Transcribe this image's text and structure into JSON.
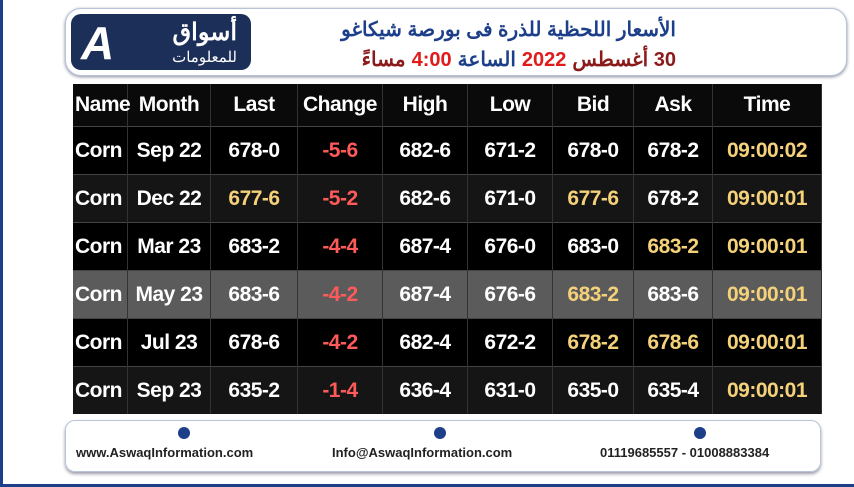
{
  "header": {
    "logo": {
      "name": "أسواق",
      "subtitle": "للمعلومات"
    },
    "title": "الأسعار اللحظية للذرة فى بورصة شيكاغو",
    "subtitle_parts": [
      "30 أغسطس",
      "2022",
      "الساعة",
      "4:00",
      "مساءً"
    ]
  },
  "table": {
    "columns": [
      "Name",
      "Month",
      "Last",
      "Change",
      "High",
      "Low",
      "Bid",
      "Ask",
      "Time"
    ],
    "rows": [
      [
        "Corn",
        "Sep 22",
        "678-0",
        "-5-6",
        "682-6",
        "671-2",
        "678-0",
        "678-2",
        "09:00:02"
      ],
      [
        "Corn",
        "Dec 22",
        "677-6",
        "-5-2",
        "682-6",
        "671-0",
        "677-6",
        "678-2",
        "09:00:01"
      ],
      [
        "Corn",
        "Mar 23",
        "683-2",
        "-4-4",
        "687-4",
        "676-0",
        "683-0",
        "683-2",
        "09:00:01"
      ],
      [
        "Corn",
        "May 23",
        "683-6",
        "-4-2",
        "687-4",
        "676-6",
        "683-2",
        "683-6",
        "09:00:01"
      ],
      [
        "Corn",
        "Jul 23",
        "678-6",
        "-4-2",
        "682-4",
        "672-2",
        "678-2",
        "678-6",
        "09:00:01"
      ],
      [
        "Corn",
        "Sep 23",
        "635-2",
        "-1-4",
        "636-4",
        "631-0",
        "635-0",
        "635-4",
        "09:00:01"
      ]
    ]
  },
  "footer": {
    "website": "www.AswaqInformation.com",
    "email": "Info@AswaqInformation.com",
    "phone": "01119685557 - 01008883384"
  }
}
